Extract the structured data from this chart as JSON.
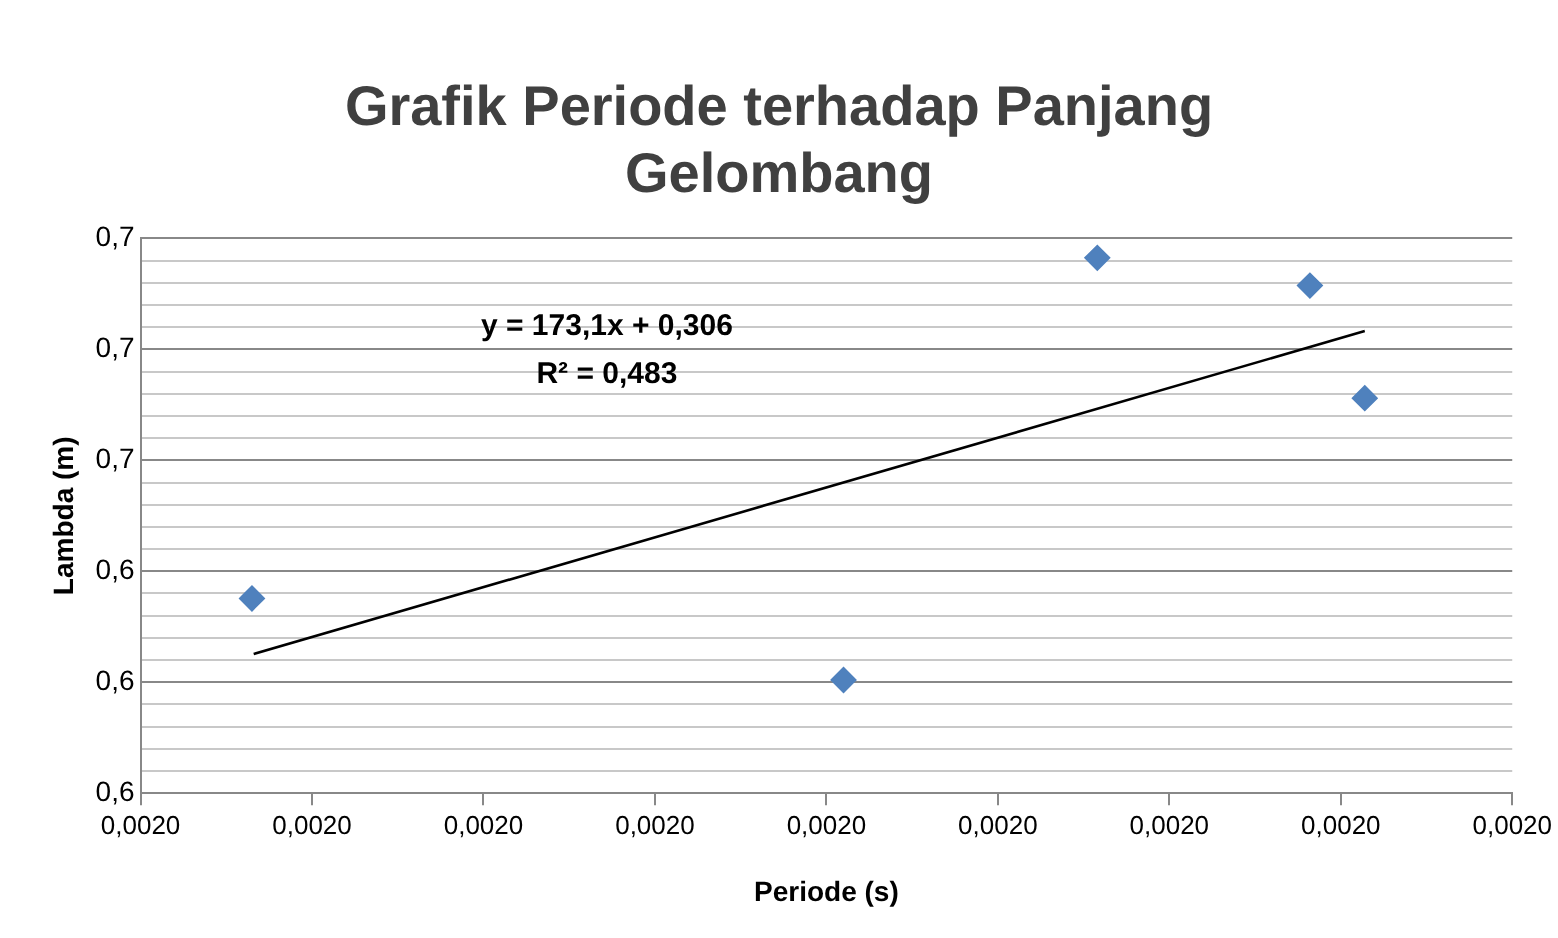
{
  "chart_data": {
    "type": "scatter",
    "title": "Grafik Periode terhadap Panjang Gelombang",
    "xlabel": "Periode (s)",
    "ylabel": "Lambda (m)",
    "series": [
      {
        "color": "#4f81bd",
        "marker": "diamond",
        "x": [
          0.0019665,
          0.002001,
          0.0020158,
          0.0020282,
          0.0020314
        ],
        "values": [
          0.6351,
          0.6204,
          0.6965,
          0.6915,
          0.6712
        ]
      },
      {
        "type": "line",
        "marker": "none",
        "color": "#000000",
        "x": [
          0.0019666,
          0.0020314
        ],
        "values": [
          0.6251,
          0.6833
        ]
      }
    ],
    "xlim": [
      0.00196,
      0.00204
    ],
    "xticks": [
      {
        "value": 0.00196,
        "label": "0,0020"
      },
      {
        "value": 0.00197,
        "label": "0,0020"
      },
      {
        "value": 0.00198,
        "label": "0,0020"
      },
      {
        "value": 0.00199,
        "label": "0,0020"
      },
      {
        "value": 0.002,
        "label": "0,0020"
      },
      {
        "value": 0.00201,
        "label": "0,0020"
      },
      {
        "value": 0.00202,
        "label": "0,0020"
      },
      {
        "value": 0.00203,
        "label": "0,0020"
      },
      {
        "value": 0.00204,
        "label": "0,0020"
      }
    ],
    "ylim": [
      0.6,
      0.7
    ],
    "yticks": [
      {
        "value": 0.6,
        "label": "0,6"
      },
      {
        "value": 0.604,
        "label": null
      },
      {
        "value": 0.608,
        "label": null
      },
      {
        "value": 0.612,
        "label": null
      },
      {
        "value": 0.616,
        "label": null
      },
      {
        "value": 0.62,
        "label": "0,6"
      },
      {
        "value": 0.624,
        "label": null
      },
      {
        "value": 0.628,
        "label": null
      },
      {
        "value": 0.632,
        "label": null
      },
      {
        "value": 0.636,
        "label": null
      },
      {
        "value": 0.64,
        "label": "0,6"
      },
      {
        "value": 0.644,
        "label": null
      },
      {
        "value": 0.648,
        "label": null
      },
      {
        "value": 0.652,
        "label": null
      },
      {
        "value": 0.656,
        "label": null
      },
      {
        "value": 0.66,
        "label": "0,7"
      },
      {
        "value": 0.664,
        "label": null
      },
      {
        "value": 0.668,
        "label": null
      },
      {
        "value": 0.672,
        "label": null
      },
      {
        "value": 0.676,
        "label": null
      },
      {
        "value": 0.68,
        "label": "0,7"
      },
      {
        "value": 0.684,
        "label": null
      },
      {
        "value": 0.688,
        "label": null
      },
      {
        "value": 0.692,
        "label": null
      },
      {
        "value": 0.696,
        "label": null
      },
      {
        "value": 0.7,
        "label": "0,7"
      }
    ],
    "annotations": [
      "y = 173,1x + 0,306",
      "R² = 0,483"
    ],
    "grid": "y",
    "legend": false,
    "line_style": "solid"
  }
}
